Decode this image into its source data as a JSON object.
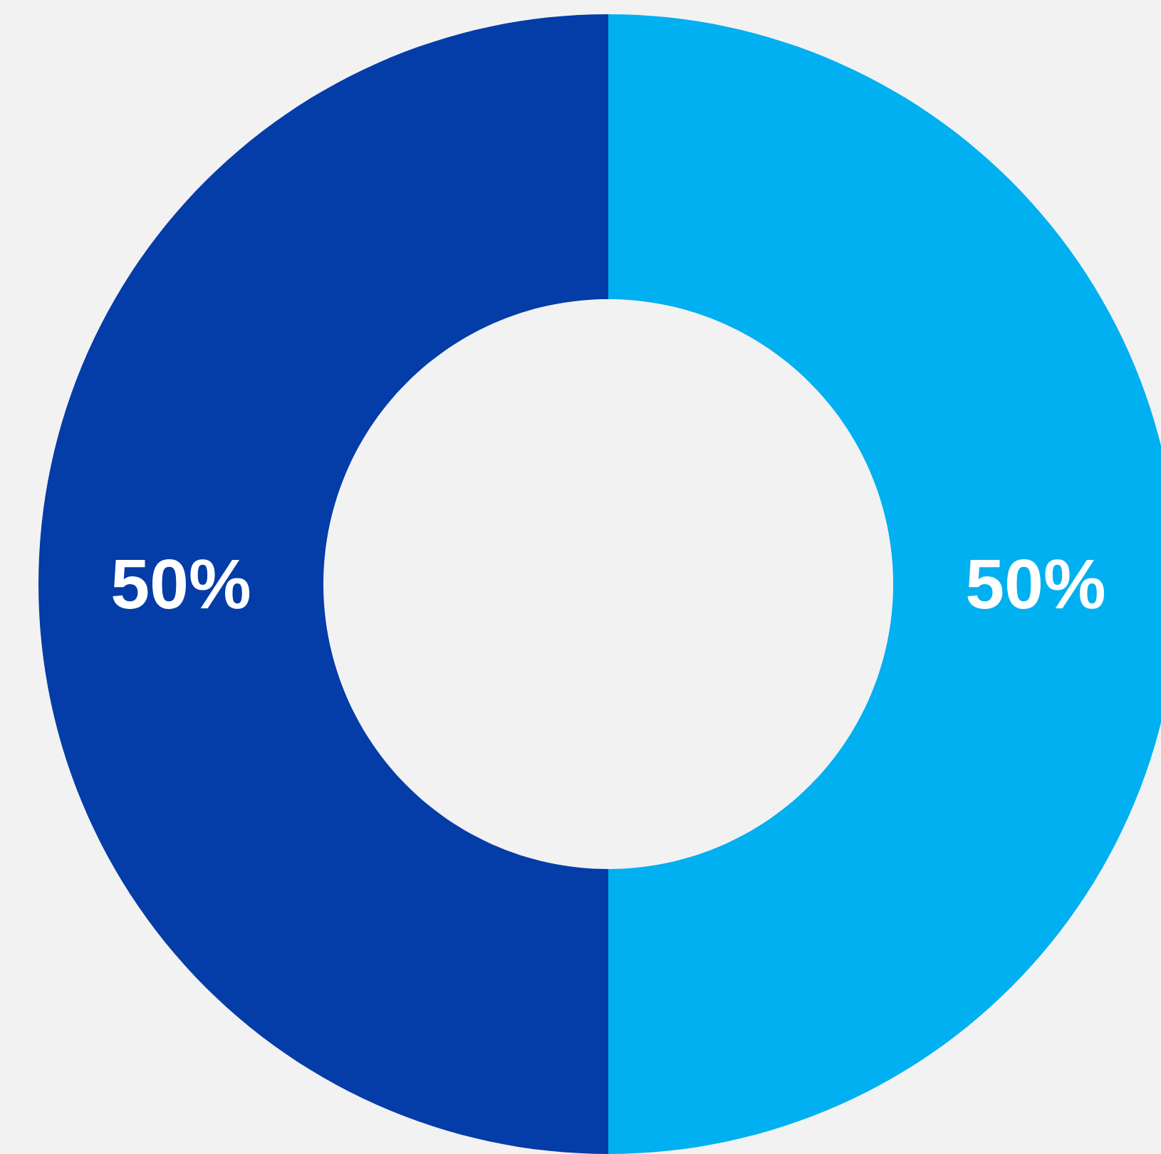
{
  "chart_data": {
    "type": "donut",
    "categories": [
      null,
      null
    ],
    "values": [
      50,
      50
    ],
    "colors": [
      "#00b0f0",
      "#043ca8"
    ],
    "value_labels": [
      "50%",
      "50%"
    ]
  }
}
